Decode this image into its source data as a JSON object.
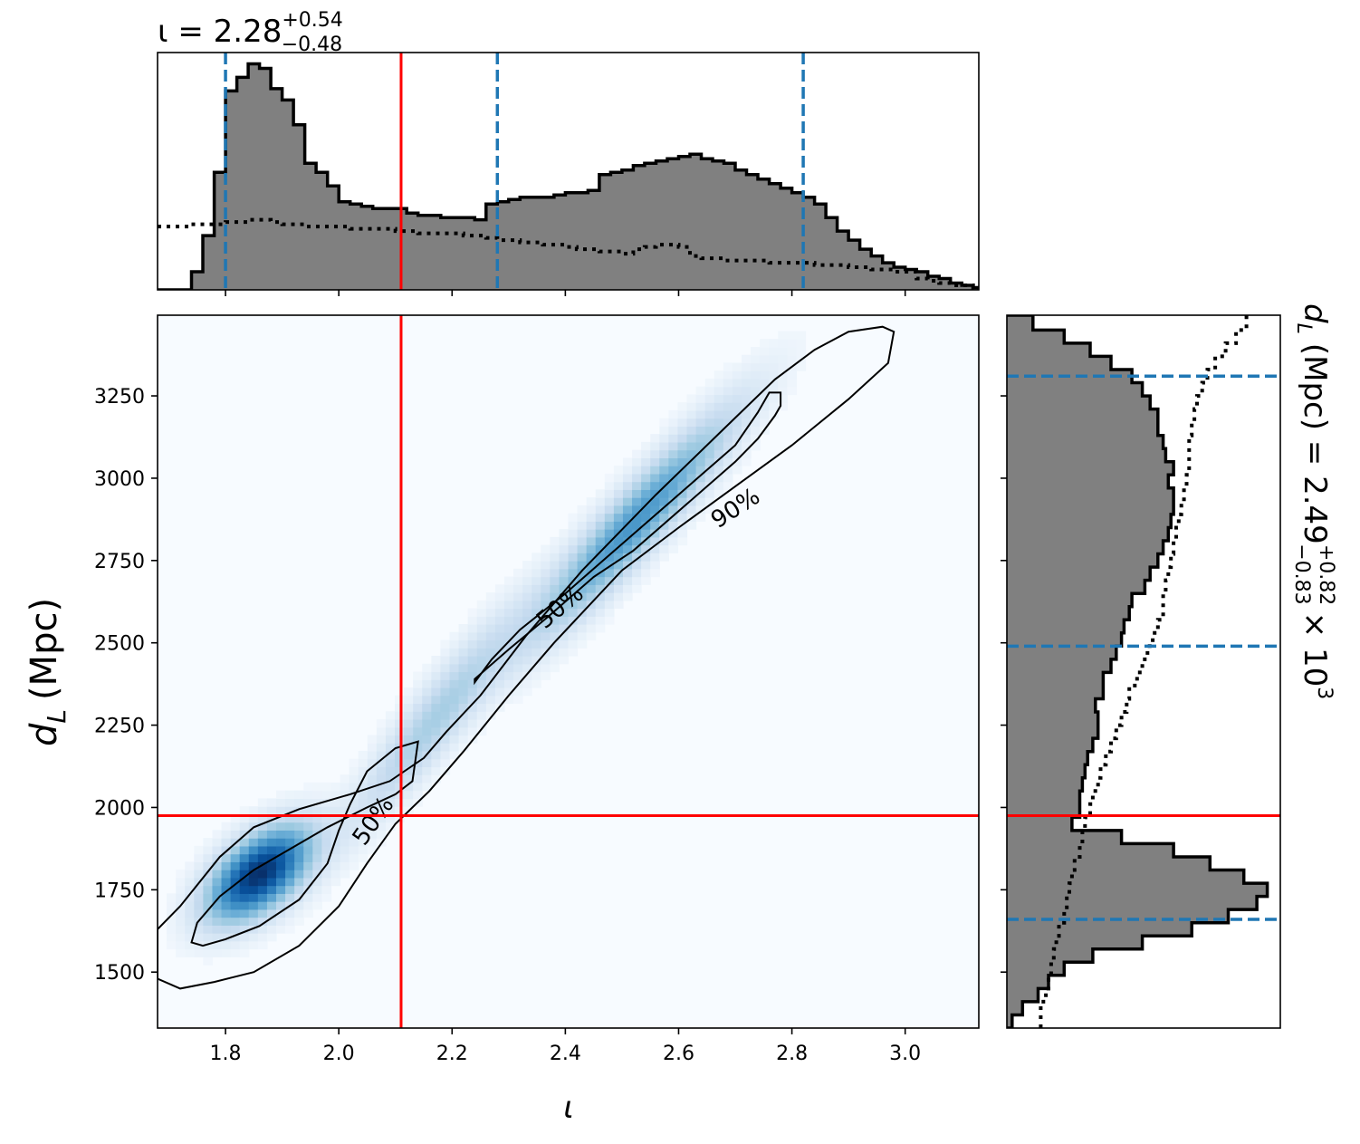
{
  "chart_data": [
    {
      "panel": "top-marginal",
      "type": "histogram",
      "title": {
        "symbol": "ι",
        "median": "2.28",
        "plus": "+0.54",
        "minus": "−0.48"
      },
      "xlim": [
        1.68,
        3.13
      ],
      "xticks": [
        1.8,
        2.0,
        2.2,
        2.4,
        2.6,
        2.8,
        3.0
      ],
      "show_tick_labels": false,
      "bin_edges": [
        1.68,
        1.7,
        1.72,
        1.74,
        1.76,
        1.78,
        1.8,
        1.82,
        1.84,
        1.86,
        1.88,
        1.9,
        1.92,
        1.94,
        1.96,
        1.98,
        2.0,
        2.02,
        2.04,
        2.06,
        2.08,
        2.1,
        2.12,
        2.14,
        2.16,
        2.18,
        2.2,
        2.22,
        2.24,
        2.26,
        2.28,
        2.3,
        2.32,
        2.34,
        2.36,
        2.38,
        2.4,
        2.42,
        2.44,
        2.46,
        2.48,
        2.5,
        2.52,
        2.54,
        2.56,
        2.58,
        2.6,
        2.62,
        2.64,
        2.66,
        2.68,
        2.7,
        2.72,
        2.74,
        2.76,
        2.78,
        2.8,
        2.82,
        2.84,
        2.86,
        2.88,
        2.9,
        2.92,
        2.94,
        2.96,
        2.98,
        3.0,
        3.02,
        3.04,
        3.06,
        3.08,
        3.1,
        3.12,
        3.13
      ],
      "posterior_counts": [
        0,
        0,
        0,
        0.08,
        0.24,
        0.52,
        0.88,
        0.94,
        1.0,
        0.98,
        0.89,
        0.84,
        0.73,
        0.56,
        0.52,
        0.46,
        0.39,
        0.38,
        0.37,
        0.36,
        0.36,
        0.36,
        0.34,
        0.33,
        0.33,
        0.32,
        0.32,
        0.32,
        0.31,
        0.38,
        0.39,
        0.4,
        0.41,
        0.41,
        0.41,
        0.42,
        0.43,
        0.43,
        0.44,
        0.51,
        0.52,
        0.53,
        0.55,
        0.56,
        0.57,
        0.58,
        0.59,
        0.6,
        0.58,
        0.57,
        0.56,
        0.53,
        0.51,
        0.49,
        0.47,
        0.45,
        0.43,
        0.41,
        0.38,
        0.32,
        0.26,
        0.22,
        0.18,
        0.15,
        0.12,
        0.1,
        0.09,
        0.08,
        0.06,
        0.05,
        0.03,
        0.02,
        0.01
      ],
      "prior_counts": [
        0.28,
        0.28,
        0.28,
        0.29,
        0.29,
        0.29,
        0.3,
        0.3,
        0.31,
        0.31,
        0.3,
        0.29,
        0.29,
        0.28,
        0.28,
        0.28,
        0.28,
        0.27,
        0.27,
        0.27,
        0.27,
        0.26,
        0.26,
        0.25,
        0.25,
        0.25,
        0.25,
        0.24,
        0.24,
        0.23,
        0.22,
        0.22,
        0.21,
        0.21,
        0.2,
        0.2,
        0.19,
        0.18,
        0.18,
        0.17,
        0.17,
        0.16,
        0.18,
        0.19,
        0.2,
        0.2,
        0.19,
        0.15,
        0.14,
        0.14,
        0.13,
        0.13,
        0.13,
        0.13,
        0.12,
        0.12,
        0.12,
        0.12,
        0.11,
        0.11,
        0.11,
        0.1,
        0.1,
        0.09,
        0.09,
        0.08,
        0.08,
        0.05,
        0.04,
        0.03,
        0.02,
        0.02,
        0.01
      ],
      "quantiles": [
        1.8,
        2.28,
        2.82
      ],
      "truth": 2.11,
      "ylim": [
        0,
        1.05
      ]
    },
    {
      "panel": "main-2d",
      "type": "heatmap",
      "xlabel": "ι",
      "ylabel_main": "d",
      "ylabel_sub": "L",
      "ylabel_unit": "(Mpc)",
      "xlim": [
        1.68,
        3.13
      ],
      "ylim": [
        1330,
        3495
      ],
      "xticks": [
        1.8,
        2.0,
        2.2,
        2.4,
        2.6,
        2.8,
        3.0
      ],
      "xtick_labels": [
        "1.8",
        "2.0",
        "2.2",
        "2.4",
        "2.6",
        "2.8",
        "3.0"
      ],
      "yticks": [
        1500,
        1750,
        2000,
        2250,
        2500,
        2750,
        3000,
        3250
      ],
      "ytick_labels": [
        "1500",
        "1750",
        "2000",
        "2250",
        "2500",
        "2750",
        "3000",
        "3250"
      ],
      "density_modes": [
        {
          "x": 1.86,
          "y": 1800,
          "sx": 0.06,
          "sy": 95,
          "rho": 0.55,
          "w": 1.0
        },
        {
          "x": 2.52,
          "y": 2860,
          "sx": 0.12,
          "sy": 230,
          "rho": 0.93,
          "w": 0.55
        },
        {
          "x": 2.17,
          "y": 2270,
          "sx": 0.1,
          "sy": 220,
          "rho": 0.92,
          "w": 0.28
        }
      ],
      "contours": [
        {
          "level": "90%",
          "points": [
            [
              1.68,
              1630
            ],
            [
              1.72,
              1700
            ],
            [
              1.79,
              1850
            ],
            [
              1.85,
              1940
            ],
            [
              1.93,
              1995
            ],
            [
              2.02,
              2040
            ],
            [
              2.09,
              2080
            ],
            [
              2.15,
              2150
            ],
            [
              2.19,
              2230
            ],
            [
              2.25,
              2340
            ],
            [
              2.33,
              2520
            ],
            [
              2.43,
              2720
            ],
            [
              2.56,
              2950
            ],
            [
              2.68,
              3150
            ],
            [
              2.77,
              3300
            ],
            [
              2.84,
              3390
            ],
            [
              2.9,
              3445
            ],
            [
              2.96,
              3460
            ],
            [
              2.98,
              3445
            ],
            [
              2.97,
              3350
            ],
            [
              2.9,
              3240
            ],
            [
              2.8,
              3100
            ],
            [
              2.72,
              3000
            ],
            [
              2.6,
              2850
            ],
            [
              2.5,
              2720
            ],
            [
              2.38,
              2500
            ],
            [
              2.3,
              2340
            ],
            [
              2.22,
              2170
            ],
            [
              2.16,
              2050
            ],
            [
              2.1,
              1950
            ],
            [
              2.05,
              1830
            ],
            [
              2.0,
              1700
            ],
            [
              1.93,
              1580
            ],
            [
              1.85,
              1500
            ],
            [
              1.78,
              1470
            ],
            [
              1.72,
              1450
            ],
            [
              1.68,
              1480
            ]
          ]
        },
        {
          "level": "50%",
          "points": [
            [
              1.74,
              1590
            ],
            [
              1.75,
              1650
            ],
            [
              1.79,
              1730
            ],
            [
              1.85,
              1810
            ],
            [
              1.92,
              1880
            ],
            [
              1.98,
              1940
            ],
            [
              2.05,
              2000
            ],
            [
              2.1,
              2040
            ],
            [
              2.13,
              2080
            ],
            [
              2.14,
              2200
            ],
            [
              2.1,
              2180
            ],
            [
              2.05,
              2110
            ],
            [
              2.02,
              2010
            ],
            [
              2.0,
              1930
            ],
            [
              1.98,
              1830
            ],
            [
              1.93,
              1720
            ],
            [
              1.86,
              1640
            ],
            [
              1.8,
              1600
            ],
            [
              1.76,
              1580
            ]
          ]
        },
        {
          "level": "50%",
          "points": [
            [
              2.24,
              2380
            ],
            [
              2.27,
              2450
            ],
            [
              2.32,
              2540
            ],
            [
              2.4,
              2650
            ],
            [
              2.48,
              2770
            ],
            [
              2.56,
              2890
            ],
            [
              2.64,
              3010
            ],
            [
              2.7,
              3100
            ],
            [
              2.74,
              3200
            ],
            [
              2.76,
              3260
            ],
            [
              2.78,
              3260
            ],
            [
              2.78,
              3220
            ],
            [
              2.77,
              3190
            ],
            [
              2.74,
              3120
            ],
            [
              2.7,
              3050
            ],
            [
              2.62,
              2930
            ],
            [
              2.52,
              2780
            ],
            [
              2.45,
              2700
            ],
            [
              2.37,
              2580
            ],
            [
              2.3,
              2480
            ],
            [
              2.26,
              2420
            ],
            [
              2.24,
              2390
            ]
          ]
        }
      ],
      "contour_labels": [
        {
          "text": "90%",
          "x": 2.7,
          "y": 2910,
          "angle": -33
        },
        {
          "text": "50%",
          "x": 2.39,
          "y": 2610,
          "angle": -40
        },
        {
          "text": "50%",
          "x": 2.06,
          "y": 1960,
          "angle": -55
        }
      ],
      "truth": {
        "x": 2.11,
        "y": 1975
      }
    },
    {
      "panel": "right-marginal",
      "type": "histogram",
      "orientation": "horizontal",
      "title": {
        "symbol": "d",
        "sub": "L",
        "unit": "(Mpc)",
        "median": "2.49",
        "plus": "+0.82",
        "minus": "−0.83",
        "scale": "× 10",
        "exp": "3"
      },
      "ylim": [
        1330,
        3495
      ],
      "yticks": [
        1500,
        1750,
        2000,
        2250,
        2500,
        2750,
        3000,
        3250
      ],
      "show_tick_labels": false,
      "bin_edges": [
        1330,
        1370,
        1410,
        1450,
        1490,
        1530,
        1570,
        1610,
        1650,
        1690,
        1730,
        1770,
        1810,
        1850,
        1890,
        1930,
        1970,
        2010,
        2050,
        2090,
        2130,
        2170,
        2210,
        2250,
        2290,
        2330,
        2370,
        2410,
        2450,
        2490,
        2530,
        2570,
        2610,
        2650,
        2690,
        2730,
        2770,
        2810,
        2850,
        2890,
        2930,
        2970,
        3010,
        3050,
        3090,
        3130,
        3170,
        3210,
        3250,
        3290,
        3330,
        3370,
        3410,
        3450,
        3495
      ],
      "posterior_counts": [
        0.02,
        0.06,
        0.12,
        0.16,
        0.22,
        0.33,
        0.52,
        0.71,
        0.85,
        0.96,
        1.0,
        0.91,
        0.78,
        0.64,
        0.44,
        0.25,
        0.28,
        0.28,
        0.29,
        0.3,
        0.31,
        0.33,
        0.35,
        0.35,
        0.34,
        0.37,
        0.37,
        0.4,
        0.42,
        0.44,
        0.45,
        0.47,
        0.48,
        0.53,
        0.55,
        0.58,
        0.6,
        0.62,
        0.63,
        0.64,
        0.64,
        0.62,
        0.64,
        0.61,
        0.6,
        0.58,
        0.58,
        0.55,
        0.52,
        0.48,
        0.4,
        0.32,
        0.22,
        0.1
      ],
      "prior_counts": [
        0.13,
        0.13,
        0.15,
        0.16,
        0.17,
        0.18,
        0.19,
        0.2,
        0.22,
        0.23,
        0.24,
        0.25,
        0.26,
        0.28,
        0.29,
        0.3,
        0.32,
        0.33,
        0.35,
        0.36,
        0.38,
        0.4,
        0.42,
        0.44,
        0.46,
        0.47,
        0.5,
        0.52,
        0.54,
        0.56,
        0.58,
        0.6,
        0.6,
        0.61,
        0.62,
        0.63,
        0.64,
        0.65,
        0.66,
        0.67,
        0.68,
        0.69,
        0.7,
        0.7,
        0.7,
        0.71,
        0.72,
        0.73,
        0.75,
        0.77,
        0.8,
        0.84,
        0.88,
        0.92
      ],
      "quantiles": [
        1660,
        2490,
        3310
      ],
      "truth": 1975,
      "xlim": [
        0,
        1.05
      ]
    }
  ]
}
